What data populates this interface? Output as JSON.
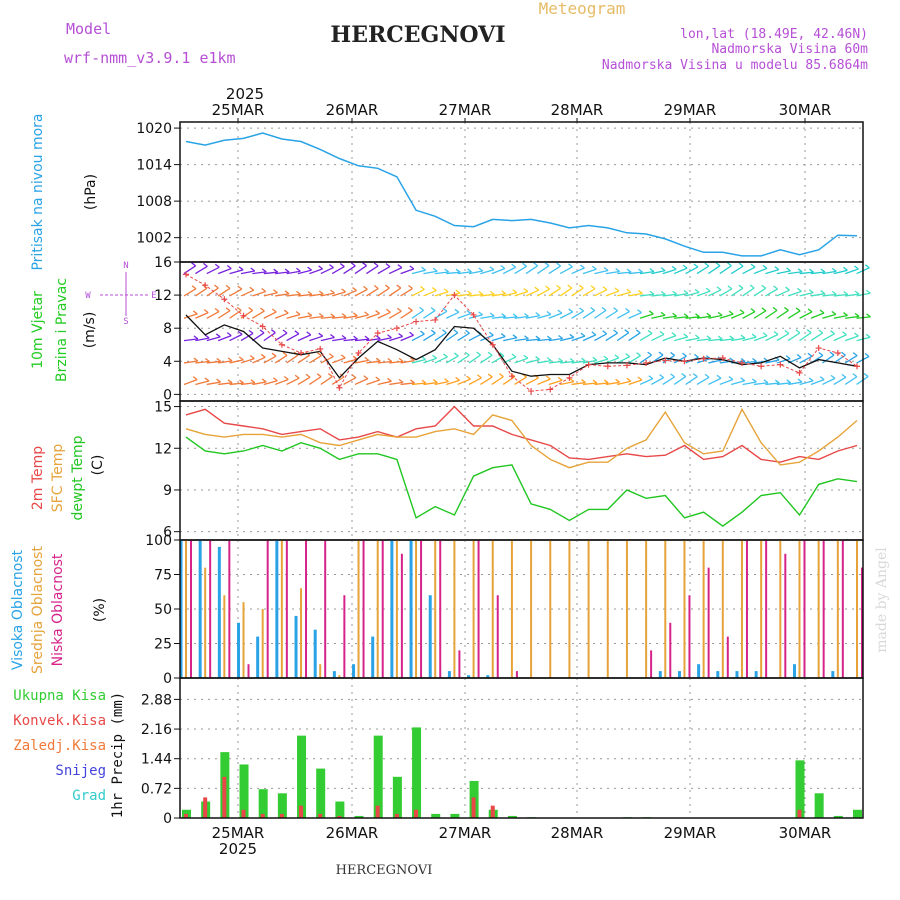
{
  "header": {
    "model_label": "Model",
    "model_name": "wrf-nmm_v3.9.1  e1km",
    "title": "HERCEGNOVI",
    "product": "Meteogram",
    "coords": "lon,lat (18.49E, 42.46N)",
    "elevation": "Nadmorska Visina 60m",
    "model_elevation": "Nadmorska Visina u modelu 85.6864m"
  },
  "footer": {
    "station": "HERCEGNOVI",
    "watermark": "made by Angel"
  },
  "colors": {
    "pressure": "#29a3e6",
    "wind_label": "#22cc22",
    "temp2m": "#e84848",
    "sfc": "#e6a33a",
    "dewpt": "#22c622",
    "high_cloud": "#29a3e6",
    "mid_cloud": "#e6a33a",
    "low_cloud": "#d6238a",
    "model": "#b64fd6",
    "total_precip": "#33cc33",
    "conv_precip": "#e84848",
    "frz_precip": "#f07a3a",
    "snow": "#4444dd",
    "hail": "#33cccc"
  },
  "chart_data": [
    {
      "type": "line",
      "id": "pressure",
      "ylabel": [
        "Pritisak na nivou mora",
        "(hPa)"
      ],
      "ylim": [
        998,
        1021
      ],
      "yticks": [
        1002,
        1008,
        1014,
        1020
      ],
      "x_top_year": "2025",
      "x_labels": [
        "25MAR",
        "26MAR",
        "27MAR",
        "28MAR",
        "29MAR",
        "30MAR"
      ],
      "grid": true,
      "series": [
        {
          "values": [
            1017.8,
            1017.2,
            1018,
            1018.3,
            1019.2,
            1018.2,
            1017.8,
            1016.5,
            1015,
            1013.8,
            1013.4,
            1012,
            1006.5,
            1005.5,
            1004,
            1003.8,
            1005,
            1004.8,
            1005,
            1004.4,
            1003.6,
            1004,
            1003.6,
            1002.8,
            1002.6,
            1001.8,
            1000.6,
            999.6,
            999.6,
            999,
            999,
            1000,
            999.2,
            1000,
            1002.4,
            1002.3
          ]
        }
      ]
    },
    {
      "type": "line",
      "id": "wind",
      "ylabel": [
        "10m Vjetar",
        "Brzina i Pravac",
        "(m/s)"
      ],
      "compass": [
        "N",
        "E",
        "S",
        "W"
      ],
      "ylim": [
        -0.8,
        16
      ],
      "yticks": [
        0,
        4,
        8,
        12,
        16
      ],
      "grid": true,
      "series": [
        {
          "name": "speed",
          "values": [
            9.6,
            7.2,
            8.4,
            7.6,
            5.6,
            5.2,
            4.8,
            5.2,
            2.0,
            4.4,
            6.4,
            5.4,
            4.2,
            5.4,
            8.2,
            8.0,
            6.0,
            2.8,
            2.2,
            2.4,
            2.4,
            3.6,
            3.8,
            3.8,
            3.6,
            4.4,
            4.0,
            4.4,
            4.2,
            3.6,
            3.8,
            4.6,
            3.2,
            4.2,
            3.8,
            3.4
          ]
        },
        {
          "name": "gust",
          "values": [
            14.5,
            13.2,
            11.5,
            9.5,
            8.2,
            6.0,
            5.0,
            5.5,
            0.8,
            5.0,
            7.4,
            8.0,
            8.8,
            9.0,
            12.0,
            9.6,
            6.0,
            2.2,
            0.4,
            0.6,
            2.0,
            3.6,
            3.4,
            3.5,
            3.8,
            4.1,
            4.0,
            4.3,
            4.4,
            3.8,
            3.4,
            3.6,
            2.6,
            5.6,
            5.0,
            3.4
          ]
        }
      ]
    },
    {
      "type": "line",
      "id": "temperature",
      "ylabel": [
        "2m Temp",
        "SFC Temp",
        "dewpt Temp",
        "(C)"
      ],
      "ylim": [
        5.4,
        15.4
      ],
      "yticks": [
        6,
        9,
        12,
        15
      ],
      "grid": true,
      "series": [
        {
          "name": "2m Temp",
          "values": [
            14.4,
            14.8,
            13.8,
            13.6,
            13.4,
            13.0,
            13.2,
            13.4,
            12.6,
            12.8,
            13.2,
            12.8,
            13.4,
            13.6,
            15.0,
            13.6,
            13.6,
            13.0,
            12.6,
            12.2,
            11.3,
            11.2,
            11.4,
            11.6,
            11.4,
            11.5,
            12.2,
            11.2,
            11.4,
            12.2,
            11.2,
            11.0,
            11.4,
            11.2,
            11.8,
            12.2
          ]
        },
        {
          "name": "SFC Temp",
          "values": [
            13.4,
            13.0,
            12.8,
            13.0,
            13.0,
            12.8,
            13.0,
            12.4,
            12.2,
            12.6,
            13.0,
            12.8,
            12.8,
            13.2,
            13.4,
            13.0,
            14.4,
            14.0,
            12.2,
            11.2,
            10.6,
            11.0,
            11.0,
            12.0,
            12.6,
            14.6,
            12.4,
            11.6,
            11.8,
            14.8,
            12.4,
            10.8,
            11.0,
            11.8,
            12.8,
            14.0
          ]
        },
        {
          "name": "dewpt Temp",
          "values": [
            12.8,
            11.8,
            11.6,
            11.8,
            12.2,
            11.8,
            12.4,
            12.0,
            11.2,
            11.6,
            11.6,
            11.2,
            7.0,
            7.8,
            7.2,
            10.0,
            10.6,
            10.8,
            8.0,
            7.6,
            6.8,
            7.6,
            7.6,
            9.0,
            8.4,
            8.6,
            7.0,
            7.4,
            6.4,
            7.4,
            8.6,
            8.8,
            7.2,
            9.4,
            9.8,
            9.6
          ]
        }
      ]
    },
    {
      "type": "bar",
      "id": "clouds",
      "ylabel": [
        "Visoka Oblacnost",
        "Srednja Oblacnost",
        "Niska Oblacnost",
        "(%)"
      ],
      "ylim": [
        0,
        100
      ],
      "yticks": [
        0,
        25,
        50,
        75,
        100
      ],
      "grid": true,
      "series": [
        {
          "name": "Visoka Oblacnost",
          "values": [
            100,
            100,
            95,
            40,
            30,
            100,
            45,
            35,
            5,
            10,
            30,
            100,
            100,
            60,
            5,
            2,
            2,
            0,
            0,
            0,
            0,
            0,
            0,
            0,
            0,
            5,
            5,
            10,
            5,
            5,
            5,
            0,
            10,
            0,
            5,
            0
          ]
        },
        {
          "name": "Srednja Oblacnost",
          "values": [
            100,
            80,
            60,
            55,
            50,
            100,
            65,
            10,
            2,
            100,
            100,
            100,
            100,
            100,
            100,
            100,
            100,
            100,
            100,
            100,
            100,
            100,
            100,
            100,
            100,
            100,
            100,
            100,
            100,
            100,
            100,
            100,
            100,
            100,
            100,
            100
          ]
        },
        {
          "name": "Niska Oblacnost",
          "values": [
            100,
            100,
            100,
            10,
            100,
            100,
            100,
            100,
            60,
            100,
            100,
            90,
            100,
            100,
            20,
            100,
            60,
            5,
            0,
            0,
            0,
            0,
            0,
            0,
            20,
            40,
            60,
            80,
            30,
            100,
            100,
            90,
            100,
            100,
            100,
            80
          ]
        }
      ]
    },
    {
      "type": "bar",
      "id": "precip",
      "ylabel": [
        "1hr Precip (mm)"
      ],
      "legend": [
        "Ukupna Kisa",
        "Konvek.Kisa",
        "Zaledj.Kisa",
        "Snijeg",
        "Grad"
      ],
      "ylim": [
        0,
        3.4
      ],
      "yticks": [
        0,
        0.72,
        1.44,
        2.16,
        2.88
      ],
      "x_labels": [
        "25MAR",
        "26MAR",
        "27MAR",
        "28MAR",
        "29MAR",
        "30MAR"
      ],
      "x_bottom_year": "2025",
      "grid": true,
      "series": [
        {
          "name": "Ukupna Kisa",
          "values": [
            0.2,
            0.4,
            1.6,
            1.3,
            0.7,
            0.6,
            2.0,
            1.2,
            0.4,
            0.05,
            2.0,
            1.0,
            2.2,
            0.1,
            0.1,
            0.9,
            0.2,
            0.05,
            0.02,
            0.0,
            0.0,
            0.0,
            0.0,
            0.02,
            0.02,
            0.0,
            0.0,
            0.0,
            0.0,
            0.0,
            0.0,
            0.0,
            1.4,
            0.6,
            0.05,
            0.2
          ]
        },
        {
          "name": "Konvek.Kisa",
          "values": [
            0.1,
            0.5,
            1.0,
            0.2,
            0.1,
            0.1,
            0.3,
            0.1,
            0.05,
            0.0,
            0.3,
            0.1,
            0.2,
            0.0,
            0.0,
            0.5,
            0.3,
            0.0,
            0.0,
            0.0,
            0.0,
            0.0,
            0.0,
            0.0,
            0.0,
            0.0,
            0.0,
            0.0,
            0.0,
            0.0,
            0.0,
            0.0,
            0.2,
            0.0,
            0.0,
            0.0
          ]
        }
      ]
    }
  ]
}
